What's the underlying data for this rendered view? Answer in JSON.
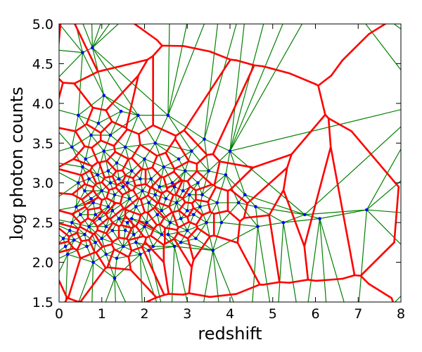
{
  "chart_data": {
    "type": "scatter",
    "xlabel": "redshift",
    "ylabel_prefix": "log",
    "ylabel_rest": " photon counts",
    "xlim": [
      0,
      8
    ],
    "ylim": [
      1.5,
      5.0
    ],
    "xticks": [
      0,
      1,
      2,
      3,
      4,
      5,
      6,
      7,
      8
    ],
    "xtick_labels": [
      "0",
      "1",
      "2",
      "3",
      "4",
      "5",
      "6",
      "7",
      "8"
    ],
    "yticks": [
      1.5,
      2.0,
      2.5,
      3.0,
      3.5,
      4.0,
      4.5,
      5.0
    ],
    "ytick_labels": [
      "1.5",
      "2.0",
      "2.5",
      "3.0",
      "3.5",
      "4.0",
      "4.5",
      "5.0"
    ],
    "grid": false,
    "colors": {
      "points": "#0000ff",
      "green_mesh": "#008000",
      "red_mesh": "#ff0000"
    },
    "points": [
      [
        0.1,
        2.3
      ],
      [
        0.15,
        2.2
      ],
      [
        0.2,
        2.1
      ],
      [
        0.25,
        2.4
      ],
      [
        0.3,
        2.5
      ],
      [
        0.3,
        3.45
      ],
      [
        0.35,
        2.28
      ],
      [
        0.4,
        2.7
      ],
      [
        0.45,
        3.0
      ],
      [
        0.45,
        3.85
      ],
      [
        0.5,
        2.6
      ],
      [
        0.55,
        3.2
      ],
      [
        0.55,
        4.64
      ],
      [
        0.6,
        2.9
      ],
      [
        0.62,
        3.3
      ],
      [
        0.65,
        2.2
      ],
      [
        0.7,
        2.45
      ],
      [
        0.75,
        2.8
      ],
      [
        0.75,
        3.6
      ],
      [
        0.78,
        4.7
      ],
      [
        0.8,
        2.0
      ],
      [
        0.85,
        2.6
      ],
      [
        0.9,
        3.1
      ],
      [
        0.92,
        3.75
      ],
      [
        1.0,
        2.3
      ],
      [
        1.0,
        2.9
      ],
      [
        1.05,
        3.4
      ],
      [
        1.05,
        4.1
      ],
      [
        1.1,
        2.1
      ],
      [
        1.15,
        2.7
      ],
      [
        1.2,
        3.0
      ],
      [
        1.2,
        3.6
      ],
      [
        1.25,
        2.4
      ],
      [
        1.3,
        1.8
      ],
      [
        1.3,
        2.85
      ],
      [
        1.35,
        3.25
      ],
      [
        1.4,
        2.55
      ],
      [
        1.45,
        3.9
      ],
      [
        1.5,
        2.2
      ],
      [
        1.5,
        2.95
      ],
      [
        1.55,
        3.45
      ],
      [
        1.6,
        2.5
      ],
      [
        1.65,
        2.8
      ],
      [
        1.7,
        3.15
      ],
      [
        1.75,
        2.35
      ],
      [
        1.8,
        2.7
      ],
      [
        1.85,
        3.85
      ],
      [
        1.9,
        2.1
      ],
      [
        1.95,
        2.9
      ],
      [
        2.0,
        3.3
      ],
      [
        2.05,
        2.5
      ],
      [
        2.1,
        2.75
      ],
      [
        2.15,
        3.05
      ],
      [
        2.2,
        2.2
      ],
      [
        2.25,
        3.5
      ],
      [
        2.3,
        2.6
      ],
      [
        2.35,
        2.95
      ],
      [
        2.4,
        2.35
      ],
      [
        2.45,
        3.2
      ],
      [
        2.5,
        2.8
      ],
      [
        2.55,
        3.85
      ],
      [
        2.6,
        2.5
      ],
      [
        2.65,
        3.0
      ],
      [
        2.7,
        2.2
      ],
      [
        2.75,
        2.75
      ],
      [
        2.8,
        3.3
      ],
      [
        2.85,
        2.55
      ],
      [
        2.9,
        2.9
      ],
      [
        2.95,
        3.15
      ],
      [
        3.0,
        2.4
      ],
      [
        3.05,
        2.85
      ],
      [
        3.1,
        3.4
      ],
      [
        3.15,
        2.6
      ],
      [
        3.2,
        2.3
      ],
      [
        3.25,
        3.0
      ],
      [
        3.3,
        2.7
      ],
      [
        3.4,
        3.55
      ],
      [
        3.45,
        2.5
      ],
      [
        3.5,
        3.15
      ],
      [
        3.6,
        2.15
      ],
      [
        3.7,
        2.75
      ],
      [
        3.8,
        2.5
      ],
      [
        3.9,
        3.1
      ],
      [
        4.0,
        3.4
      ],
      [
        4.2,
        2.75
      ],
      [
        4.35,
        2.85
      ],
      [
        4.6,
        2.7
      ],
      [
        4.65,
        2.45
      ],
      [
        5.25,
        2.5
      ],
      [
        5.75,
        2.6
      ],
      [
        6.1,
        2.55
      ],
      [
        7.2,
        2.66
      ],
      [
        0.6,
        2.35
      ],
      [
        0.7,
        3.05
      ],
      [
        0.8,
        2.75
      ],
      [
        0.85,
        2.25
      ],
      [
        0.95,
        2.55
      ],
      [
        1.1,
        2.45
      ],
      [
        1.15,
        3.15
      ],
      [
        1.25,
        2.65
      ],
      [
        1.35,
        2.05
      ],
      [
        1.4,
        3.05
      ],
      [
        1.55,
        2.4
      ],
      [
        1.6,
        3.0
      ],
      [
        1.7,
        2.55
      ],
      [
        1.8,
        2.25
      ],
      [
        1.9,
        3.05
      ],
      [
        2.0,
        2.45
      ],
      [
        2.1,
        2.15
      ],
      [
        2.25,
        2.85
      ],
      [
        2.4,
        2.65
      ],
      [
        2.55,
        2.35
      ],
      [
        2.7,
        2.95
      ],
      [
        2.85,
        2.25
      ],
      [
        3.0,
        2.65
      ],
      [
        3.35,
        2.85
      ]
    ]
  }
}
